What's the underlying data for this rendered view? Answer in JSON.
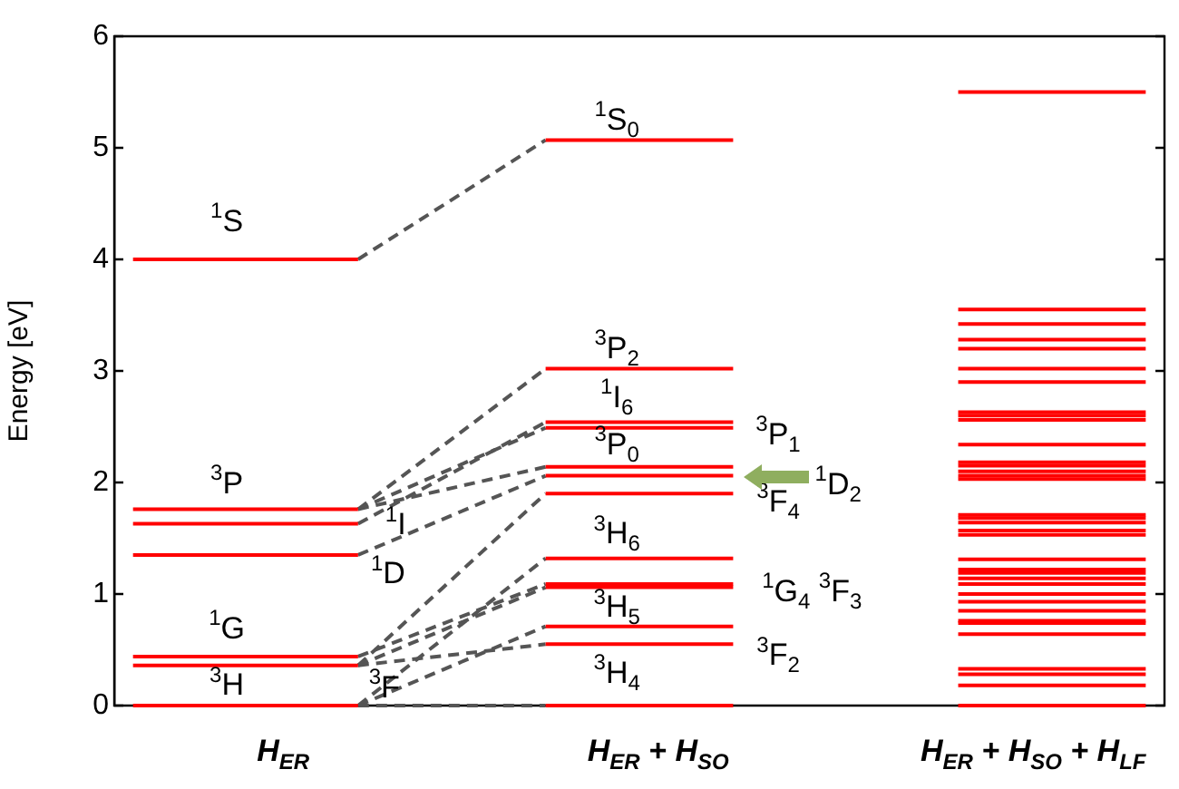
{
  "chart_data": {
    "type": "line",
    "ylabel": "Energy [eV]",
    "ylim": [
      0,
      6
    ],
    "yticks": [
      0,
      1,
      2,
      3,
      4,
      5,
      6
    ],
    "categories": [
      null,
      null,
      null,
      null,
      "H$_{ER}$",
      null,
      null,
      null,
      null,
      null,
      null,
      null,
      null,
      null,
      "H$_{ER}$ + H$_{SO}$",
      null,
      null,
      null,
      null,
      null,
      null,
      null,
      null,
      null,
      "H$_{ER}$ + H$_{SO}$ + H$_{LF}$",
      null,
      null,
      null
    ],
    "grid": false,
    "marker": "none",
    "series": [
      {
        "color": "#ff0000",
        "line_style": "solid",
        "values": [
          4.0,
          4.0,
          4.0,
          4.0,
          4.0,
          4.0,
          4.0,
          null,
          null,
          null,
          null,
          null,
          null,
          null,
          null,
          null,
          null,
          null,
          null,
          null,
          null,
          null,
          null,
          null,
          null,
          null,
          null,
          null
        ]
      },
      {
        "color": "#ff0000",
        "line_style": "solid",
        "values": [
          1.76,
          1.76,
          1.76,
          1.76,
          1.76,
          1.76,
          1.76,
          null,
          null,
          null,
          null,
          null,
          null,
          null,
          null,
          null,
          null,
          null,
          null,
          null,
          null,
          null,
          null,
          null,
          null,
          null,
          null,
          null
        ]
      },
      {
        "color": "#ff0000",
        "line_style": "solid",
        "values": [
          1.63,
          1.63,
          1.63,
          1.63,
          1.63,
          1.63,
          1.63,
          null,
          null,
          null,
          null,
          null,
          null,
          null,
          null,
          null,
          null,
          null,
          null,
          null,
          null,
          null,
          null,
          null,
          null,
          null,
          null,
          null
        ]
      },
      {
        "color": "#ff0000",
        "line_style": "solid",
        "values": [
          1.35,
          1.35,
          1.35,
          1.35,
          1.35,
          1.35,
          1.35,
          null,
          null,
          null,
          null,
          null,
          null,
          null,
          null,
          null,
          null,
          null,
          null,
          null,
          null,
          null,
          null,
          null,
          null,
          null,
          null,
          null
        ]
      },
      {
        "color": "#ff0000",
        "line_style": "solid",
        "values": [
          0.44,
          0.44,
          0.44,
          0.44,
          0.44,
          0.44,
          0.44,
          null,
          null,
          null,
          null,
          null,
          null,
          null,
          null,
          null,
          null,
          null,
          null,
          null,
          null,
          null,
          null,
          null,
          null,
          null,
          null,
          null
        ]
      },
      {
        "color": "#ff0000",
        "line_style": "solid",
        "values": [
          0.36,
          0.36,
          0.36,
          0.36,
          0.36,
          0.36,
          0.36,
          null,
          null,
          null,
          null,
          null,
          null,
          null,
          null,
          null,
          null,
          null,
          null,
          null,
          null,
          null,
          null,
          null,
          null,
          null,
          null,
          null
        ]
      },
      {
        "color": "#ff0000",
        "line_style": "solid",
        "values": [
          0,
          0,
          0,
          0,
          0,
          0,
          0,
          null,
          null,
          null,
          null,
          null,
          null,
          null,
          null,
          null,
          null,
          null,
          null,
          null,
          null,
          null,
          null,
          null,
          null,
          null,
          null,
          null
        ]
      },
      {
        "color": "#ff0000",
        "line_style": "solid",
        "values": [
          null,
          null,
          null,
          null,
          null,
          null,
          null,
          null,
          null,
          null,
          null,
          5.07,
          5.07,
          5.07,
          5.07,
          5.07,
          5.07,
          null,
          null,
          null,
          null,
          null,
          null,
          null,
          null,
          null,
          null,
          null
        ]
      },
      {
        "color": "#ff0000",
        "line_style": "solid",
        "values": [
          null,
          null,
          null,
          null,
          null,
          null,
          null,
          null,
          null,
          null,
          null,
          3.02,
          3.02,
          3.02,
          3.02,
          3.02,
          3.02,
          null,
          null,
          null,
          null,
          null,
          null,
          null,
          null,
          null,
          null,
          null
        ]
      },
      {
        "color": "#ff0000",
        "line_style": "solid",
        "values": [
          null,
          null,
          null,
          null,
          null,
          null,
          null,
          null,
          null,
          null,
          null,
          2.54,
          2.54,
          2.54,
          2.54,
          2.54,
          2.54,
          null,
          null,
          null,
          null,
          null,
          null,
          null,
          null,
          null,
          null,
          null
        ]
      },
      {
        "color": "#ff0000",
        "line_style": "solid",
        "values": [
          null,
          null,
          null,
          null,
          null,
          null,
          null,
          null,
          null,
          null,
          null,
          2.49,
          2.49,
          2.49,
          2.49,
          2.49,
          2.49,
          null,
          null,
          null,
          null,
          null,
          null,
          null,
          null,
          null,
          null,
          null
        ]
      },
      {
        "color": "#ff0000",
        "line_style": "solid",
        "values": [
          null,
          null,
          null,
          null,
          null,
          null,
          null,
          null,
          null,
          null,
          null,
          2.14,
          2.14,
          2.14,
          2.14,
          2.14,
          2.14,
          null,
          null,
          null,
          null,
          null,
          null,
          null,
          null,
          null,
          null,
          null
        ]
      },
      {
        "color": "#ff0000",
        "line_style": "solid",
        "values": [
          null,
          null,
          null,
          null,
          null,
          null,
          null,
          null,
          null,
          null,
          null,
          2.06,
          2.06,
          2.06,
          2.06,
          2.06,
          2.06,
          null,
          null,
          null,
          null,
          null,
          null,
          null,
          null,
          null,
          null,
          null
        ]
      },
      {
        "color": "#ff0000",
        "line_style": "solid",
        "values": [
          null,
          null,
          null,
          null,
          null,
          null,
          null,
          null,
          null,
          null,
          null,
          1.9,
          1.9,
          1.9,
          1.9,
          1.9,
          1.9,
          null,
          null,
          null,
          null,
          null,
          null,
          null,
          null,
          null,
          null,
          null
        ]
      },
      {
        "color": "#ff0000",
        "line_style": "solid",
        "values": [
          null,
          null,
          null,
          null,
          null,
          null,
          null,
          null,
          null,
          null,
          null,
          1.32,
          1.32,
          1.32,
          1.32,
          1.32,
          1.32,
          null,
          null,
          null,
          null,
          null,
          null,
          null,
          null,
          null,
          null,
          null
        ]
      },
      {
        "color": "#ff0000",
        "line_style": "solid",
        "values": [
          null,
          null,
          null,
          null,
          null,
          null,
          null,
          null,
          null,
          null,
          null,
          1.09,
          1.09,
          1.09,
          1.09,
          1.09,
          1.09,
          null,
          null,
          null,
          null,
          null,
          null,
          null,
          null,
          null,
          null,
          null
        ]
      },
      {
        "color": "#ff0000",
        "line_style": "solid",
        "values": [
          null,
          null,
          null,
          null,
          null,
          null,
          null,
          null,
          null,
          null,
          null,
          1.06,
          1.06,
          1.06,
          1.06,
          1.06,
          1.06,
          null,
          null,
          null,
          null,
          null,
          null,
          null,
          null,
          null,
          null,
          null
        ]
      },
      {
        "color": "#ff0000",
        "line_style": "solid",
        "values": [
          null,
          null,
          null,
          null,
          null,
          null,
          null,
          null,
          null,
          null,
          null,
          0.71,
          0.71,
          0.71,
          0.71,
          0.71,
          0.71,
          null,
          null,
          null,
          null,
          null,
          null,
          null,
          null,
          null,
          null,
          null
        ]
      },
      {
        "color": "#ff0000",
        "line_style": "solid",
        "values": [
          null,
          null,
          null,
          null,
          null,
          null,
          null,
          null,
          null,
          null,
          null,
          0.55,
          0.55,
          0.55,
          0.55,
          0.55,
          0.55,
          null,
          null,
          null,
          null,
          null,
          null,
          null,
          null,
          null,
          null,
          null
        ]
      },
      {
        "color": "#ff0000",
        "line_style": "solid",
        "values": [
          null,
          null,
          null,
          null,
          null,
          null,
          null,
          null,
          null,
          null,
          null,
          0,
          0,
          0,
          0,
          0,
          0,
          null,
          null,
          null,
          null,
          null,
          null,
          null,
          null,
          null,
          null,
          null
        ]
      },
      {
        "color": "#ff0000",
        "line_style": "solid",
        "values": [
          null,
          null,
          null,
          null,
          null,
          null,
          null,
          null,
          null,
          null,
          null,
          null,
          null,
          null,
          null,
          null,
          null,
          null,
          null,
          null,
          null,
          null,
          5.5,
          5.5,
          5.5,
          5.5,
          5.5,
          5.5
        ]
      },
      {
        "color": "#ff0000",
        "line_style": "solid",
        "values": [
          null,
          null,
          null,
          null,
          null,
          null,
          null,
          null,
          null,
          null,
          null,
          null,
          null,
          null,
          null,
          null,
          null,
          null,
          null,
          null,
          null,
          null,
          3.55,
          3.55,
          3.55,
          3.55,
          3.55,
          3.55
        ]
      },
      {
        "color": "#ff0000",
        "line_style": "solid",
        "values": [
          null,
          null,
          null,
          null,
          null,
          null,
          null,
          null,
          null,
          null,
          null,
          null,
          null,
          null,
          null,
          null,
          null,
          null,
          null,
          null,
          null,
          null,
          3.42,
          3.42,
          3.42,
          3.42,
          3.42,
          3.42
        ]
      },
      {
        "color": "#ff0000",
        "line_style": "solid",
        "values": [
          null,
          null,
          null,
          null,
          null,
          null,
          null,
          null,
          null,
          null,
          null,
          null,
          null,
          null,
          null,
          null,
          null,
          null,
          null,
          null,
          null,
          null,
          3.28,
          3.28,
          3.28,
          3.28,
          3.28,
          3.28
        ]
      },
      {
        "color": "#ff0000",
        "line_style": "solid",
        "values": [
          null,
          null,
          null,
          null,
          null,
          null,
          null,
          null,
          null,
          null,
          null,
          null,
          null,
          null,
          null,
          null,
          null,
          null,
          null,
          null,
          null,
          null,
          3.2,
          3.2,
          3.2,
          3.2,
          3.2,
          3.2
        ]
      },
      {
        "color": "#ff0000",
        "line_style": "solid",
        "values": [
          null,
          null,
          null,
          null,
          null,
          null,
          null,
          null,
          null,
          null,
          null,
          null,
          null,
          null,
          null,
          null,
          null,
          null,
          null,
          null,
          null,
          null,
          3.02,
          3.02,
          3.02,
          3.02,
          3.02,
          3.02
        ]
      },
      {
        "color": "#ff0000",
        "line_style": "solid",
        "values": [
          null,
          null,
          null,
          null,
          null,
          null,
          null,
          null,
          null,
          null,
          null,
          null,
          null,
          null,
          null,
          null,
          null,
          null,
          null,
          null,
          null,
          null,
          2.9,
          2.9,
          2.9,
          2.9,
          2.9,
          2.9
        ]
      },
      {
        "color": "#ff0000",
        "line_style": "solid",
        "values": [
          null,
          null,
          null,
          null,
          null,
          null,
          null,
          null,
          null,
          null,
          null,
          null,
          null,
          null,
          null,
          null,
          null,
          null,
          null,
          null,
          null,
          null,
          2.63,
          2.63,
          2.63,
          2.63,
          2.63,
          2.63
        ]
      },
      {
        "color": "#ff0000",
        "line_style": "solid",
        "values": [
          null,
          null,
          null,
          null,
          null,
          null,
          null,
          null,
          null,
          null,
          null,
          null,
          null,
          null,
          null,
          null,
          null,
          null,
          null,
          null,
          null,
          null,
          2.6,
          2.6,
          2.6,
          2.6,
          2.6,
          2.6
        ]
      },
      {
        "color": "#ff0000",
        "line_style": "solid",
        "values": [
          null,
          null,
          null,
          null,
          null,
          null,
          null,
          null,
          null,
          null,
          null,
          null,
          null,
          null,
          null,
          null,
          null,
          null,
          null,
          null,
          null,
          null,
          2.56,
          2.56,
          2.56,
          2.56,
          2.56,
          2.56
        ]
      },
      {
        "color": "#ff0000",
        "line_style": "solid",
        "values": [
          null,
          null,
          null,
          null,
          null,
          null,
          null,
          null,
          null,
          null,
          null,
          null,
          null,
          null,
          null,
          null,
          null,
          null,
          null,
          null,
          null,
          null,
          2.34,
          2.34,
          2.34,
          2.34,
          2.34,
          2.34
        ]
      },
      {
        "color": "#ff0000",
        "line_style": "solid",
        "values": [
          null,
          null,
          null,
          null,
          null,
          null,
          null,
          null,
          null,
          null,
          null,
          null,
          null,
          null,
          null,
          null,
          null,
          null,
          null,
          null,
          null,
          null,
          2.18,
          2.18,
          2.18,
          2.18,
          2.18,
          2.18
        ]
      },
      {
        "color": "#ff0000",
        "line_style": "solid",
        "values": [
          null,
          null,
          null,
          null,
          null,
          null,
          null,
          null,
          null,
          null,
          null,
          null,
          null,
          null,
          null,
          null,
          null,
          null,
          null,
          null,
          null,
          null,
          2.15,
          2.15,
          2.15,
          2.15,
          2.15,
          2.15
        ]
      },
      {
        "color": "#ff0000",
        "line_style": "solid",
        "values": [
          null,
          null,
          null,
          null,
          null,
          null,
          null,
          null,
          null,
          null,
          null,
          null,
          null,
          null,
          null,
          null,
          null,
          null,
          null,
          null,
          null,
          null,
          2.1,
          2.1,
          2.1,
          2.1,
          2.1,
          2.1
        ]
      },
      {
        "color": "#ff0000",
        "line_style": "solid",
        "values": [
          null,
          null,
          null,
          null,
          null,
          null,
          null,
          null,
          null,
          null,
          null,
          null,
          null,
          null,
          null,
          null,
          null,
          null,
          null,
          null,
          null,
          null,
          2.06,
          2.06,
          2.06,
          2.06,
          2.06,
          2.06
        ]
      },
      {
        "color": "#ff0000",
        "line_style": "solid",
        "values": [
          null,
          null,
          null,
          null,
          null,
          null,
          null,
          null,
          null,
          null,
          null,
          null,
          null,
          null,
          null,
          null,
          null,
          null,
          null,
          null,
          null,
          null,
          2.03,
          2.03,
          2.03,
          2.03,
          2.03,
          2.03
        ]
      },
      {
        "color": "#ff0000",
        "line_style": "solid",
        "values": [
          null,
          null,
          null,
          null,
          null,
          null,
          null,
          null,
          null,
          null,
          null,
          null,
          null,
          null,
          null,
          null,
          null,
          null,
          null,
          null,
          null,
          null,
          1.71,
          1.71,
          1.71,
          1.71,
          1.71,
          1.71
        ]
      },
      {
        "color": "#ff0000",
        "line_style": "solid",
        "values": [
          null,
          null,
          null,
          null,
          null,
          null,
          null,
          null,
          null,
          null,
          null,
          null,
          null,
          null,
          null,
          null,
          null,
          null,
          null,
          null,
          null,
          null,
          1.68,
          1.68,
          1.68,
          1.68,
          1.68,
          1.68
        ]
      },
      {
        "color": "#ff0000",
        "line_style": "solid",
        "values": [
          null,
          null,
          null,
          null,
          null,
          null,
          null,
          null,
          null,
          null,
          null,
          null,
          null,
          null,
          null,
          null,
          null,
          null,
          null,
          null,
          null,
          null,
          1.64,
          1.64,
          1.64,
          1.64,
          1.64,
          1.64
        ]
      },
      {
        "color": "#ff0000",
        "line_style": "solid",
        "values": [
          null,
          null,
          null,
          null,
          null,
          null,
          null,
          null,
          null,
          null,
          null,
          null,
          null,
          null,
          null,
          null,
          null,
          null,
          null,
          null,
          null,
          null,
          1.57,
          1.57,
          1.57,
          1.57,
          1.57,
          1.57
        ]
      },
      {
        "color": "#ff0000",
        "line_style": "solid",
        "values": [
          null,
          null,
          null,
          null,
          null,
          null,
          null,
          null,
          null,
          null,
          null,
          null,
          null,
          null,
          null,
          null,
          null,
          null,
          null,
          null,
          null,
          null,
          1.53,
          1.53,
          1.53,
          1.53,
          1.53,
          1.53
        ]
      },
      {
        "color": "#ff0000",
        "line_style": "solid",
        "values": [
          null,
          null,
          null,
          null,
          null,
          null,
          null,
          null,
          null,
          null,
          null,
          null,
          null,
          null,
          null,
          null,
          null,
          null,
          null,
          null,
          null,
          null,
          1.31,
          1.31,
          1.31,
          1.31,
          1.31,
          1.31
        ]
      },
      {
        "color": "#ff0000",
        "line_style": "solid",
        "values": [
          null,
          null,
          null,
          null,
          null,
          null,
          null,
          null,
          null,
          null,
          null,
          null,
          null,
          null,
          null,
          null,
          null,
          null,
          null,
          null,
          null,
          null,
          1.22,
          1.22,
          1.22,
          1.22,
          1.22,
          1.22
        ]
      },
      {
        "color": "#ff0000",
        "line_style": "solid",
        "values": [
          null,
          null,
          null,
          null,
          null,
          null,
          null,
          null,
          null,
          null,
          null,
          null,
          null,
          null,
          null,
          null,
          null,
          null,
          null,
          null,
          null,
          null,
          1.19,
          1.19,
          1.19,
          1.19,
          1.19,
          1.19
        ]
      },
      {
        "color": "#ff0000",
        "line_style": "solid",
        "values": [
          null,
          null,
          null,
          null,
          null,
          null,
          null,
          null,
          null,
          null,
          null,
          null,
          null,
          null,
          null,
          null,
          null,
          null,
          null,
          null,
          null,
          null,
          1.14,
          1.14,
          1.14,
          1.14,
          1.14,
          1.14
        ]
      },
      {
        "color": "#ff0000",
        "line_style": "solid",
        "values": [
          null,
          null,
          null,
          null,
          null,
          null,
          null,
          null,
          null,
          null,
          null,
          null,
          null,
          null,
          null,
          null,
          null,
          null,
          null,
          null,
          null,
          null,
          1.09,
          1.09,
          1.09,
          1.09,
          1.09,
          1.09
        ]
      },
      {
        "color": "#ff0000",
        "line_style": "solid",
        "values": [
          null,
          null,
          null,
          null,
          null,
          null,
          null,
          null,
          null,
          null,
          null,
          null,
          null,
          null,
          null,
          null,
          null,
          null,
          null,
          null,
          null,
          null,
          1.0,
          1.0,
          1.0,
          1.0,
          1.0,
          1.0
        ]
      },
      {
        "color": "#ff0000",
        "line_style": "solid",
        "values": [
          null,
          null,
          null,
          null,
          null,
          null,
          null,
          null,
          null,
          null,
          null,
          null,
          null,
          null,
          null,
          null,
          null,
          null,
          null,
          null,
          null,
          null,
          0.93,
          0.93,
          0.93,
          0.93,
          0.93,
          0.93
        ]
      },
      {
        "color": "#ff0000",
        "line_style": "solid",
        "values": [
          null,
          null,
          null,
          null,
          null,
          null,
          null,
          null,
          null,
          null,
          null,
          null,
          null,
          null,
          null,
          null,
          null,
          null,
          null,
          null,
          null,
          null,
          0.85,
          0.85,
          0.85,
          0.85,
          0.85,
          0.85
        ]
      },
      {
        "color": "#ff0000",
        "line_style": "solid",
        "values": [
          null,
          null,
          null,
          null,
          null,
          null,
          null,
          null,
          null,
          null,
          null,
          null,
          null,
          null,
          null,
          null,
          null,
          null,
          null,
          null,
          null,
          null,
          0.76,
          0.76,
          0.76,
          0.76,
          0.76,
          0.76
        ]
      },
      {
        "color": "#ff0000",
        "line_style": "solid",
        "values": [
          null,
          null,
          null,
          null,
          null,
          null,
          null,
          null,
          null,
          null,
          null,
          null,
          null,
          null,
          null,
          null,
          null,
          null,
          null,
          null,
          null,
          null,
          0.74,
          0.74,
          0.74,
          0.74,
          0.74,
          0.74
        ]
      },
      {
        "color": "#ff0000",
        "line_style": "solid",
        "values": [
          null,
          null,
          null,
          null,
          null,
          null,
          null,
          null,
          null,
          null,
          null,
          null,
          null,
          null,
          null,
          null,
          null,
          null,
          null,
          null,
          null,
          null,
          0.64,
          0.64,
          0.64,
          0.64,
          0.64,
          0.64
        ]
      },
      {
        "color": "#ff0000",
        "line_style": "solid",
        "values": [
          null,
          null,
          null,
          null,
          null,
          null,
          null,
          null,
          null,
          null,
          null,
          null,
          null,
          null,
          null,
          null,
          null,
          null,
          null,
          null,
          null,
          null,
          0.33,
          0.33,
          0.33,
          0.33,
          0.33,
          0.33
        ]
      },
      {
        "color": "#ff0000",
        "line_style": "solid",
        "values": [
          null,
          null,
          null,
          null,
          null,
          null,
          null,
          null,
          null,
          null,
          null,
          null,
          null,
          null,
          null,
          null,
          null,
          null,
          null,
          null,
          null,
          null,
          0.28,
          0.28,
          0.28,
          0.28,
          0.28,
          0.28
        ]
      },
      {
        "color": "#ff0000",
        "line_style": "solid",
        "values": [
          null,
          null,
          null,
          null,
          null,
          null,
          null,
          null,
          null,
          null,
          null,
          null,
          null,
          null,
          null,
          null,
          null,
          null,
          null,
          null,
          null,
          null,
          0.18,
          0.18,
          0.18,
          0.18,
          0.18,
          0.18
        ]
      },
      {
        "color": "#ff0000",
        "line_style": "solid",
        "values": [
          null,
          null,
          null,
          null,
          null,
          null,
          null,
          null,
          null,
          null,
          null,
          null,
          null,
          null,
          null,
          null,
          null,
          null,
          null,
          null,
          null,
          null,
          0,
          0,
          0,
          0,
          0,
          0
        ]
      },
      {
        "color": "#555555",
        "line_style": "dashed",
        "values": [
          null,
          null,
          null,
          null,
          null,
          null,
          4.0,
          null,
          null,
          null,
          null,
          5.07,
          null,
          null,
          null,
          null,
          null,
          null,
          null,
          null,
          null,
          null,
          null,
          null,
          null,
          null,
          null,
          null
        ]
      },
      {
        "color": "#555555",
        "line_style": "dashed",
        "values": [
          null,
          null,
          null,
          null,
          null,
          null,
          1.76,
          null,
          null,
          null,
          null,
          3.02,
          null,
          null,
          null,
          null,
          null,
          null,
          null,
          null,
          null,
          null,
          null,
          null,
          null,
          null,
          null,
          null
        ]
      },
      {
        "color": "#555555",
        "line_style": "dashed",
        "values": [
          null,
          null,
          null,
          null,
          null,
          null,
          1.76,
          null,
          null,
          null,
          null,
          2.49,
          null,
          null,
          null,
          null,
          null,
          null,
          null,
          null,
          null,
          null,
          null,
          null,
          null,
          null,
          null,
          null
        ]
      },
      {
        "color": "#555555",
        "line_style": "dashed",
        "values": [
          null,
          null,
          null,
          null,
          null,
          null,
          1.76,
          null,
          null,
          null,
          null,
          2.14,
          null,
          null,
          null,
          null,
          null,
          null,
          null,
          null,
          null,
          null,
          null,
          null,
          null,
          null,
          null,
          null
        ]
      },
      {
        "color": "#555555",
        "line_style": "dashed",
        "values": [
          null,
          null,
          null,
          null,
          null,
          null,
          1.63,
          null,
          null,
          null,
          null,
          2.54,
          null,
          null,
          null,
          null,
          null,
          null,
          null,
          null,
          null,
          null,
          null,
          null,
          null,
          null,
          null,
          null
        ]
      },
      {
        "color": "#555555",
        "line_style": "dashed",
        "values": [
          null,
          null,
          null,
          null,
          null,
          null,
          1.35,
          null,
          null,
          null,
          null,
          2.06,
          null,
          null,
          null,
          null,
          null,
          null,
          null,
          null,
          null,
          null,
          null,
          null,
          null,
          null,
          null,
          null
        ]
      },
      {
        "color": "#555555",
        "line_style": "dashed",
        "values": [
          null,
          null,
          null,
          null,
          null,
          null,
          0.44,
          null,
          null,
          null,
          null,
          1.09,
          null,
          null,
          null,
          null,
          null,
          null,
          null,
          null,
          null,
          null,
          null,
          null,
          null,
          null,
          null,
          null
        ]
      },
      {
        "color": "#555555",
        "line_style": "dashed",
        "values": [
          null,
          null,
          null,
          null,
          null,
          null,
          0.36,
          null,
          null,
          null,
          null,
          1.9,
          null,
          null,
          null,
          null,
          null,
          null,
          null,
          null,
          null,
          null,
          null,
          null,
          null,
          null,
          null,
          null
        ]
      },
      {
        "color": "#555555",
        "line_style": "dashed",
        "values": [
          null,
          null,
          null,
          null,
          null,
          null,
          0.36,
          null,
          null,
          null,
          null,
          1.06,
          null,
          null,
          null,
          null,
          null,
          null,
          null,
          null,
          null,
          null,
          null,
          null,
          null,
          null,
          null,
          null
        ]
      },
      {
        "color": "#555555",
        "line_style": "dashed",
        "values": [
          null,
          null,
          null,
          null,
          null,
          null,
          0.36,
          null,
          null,
          null,
          null,
          0.55,
          null,
          null,
          null,
          null,
          null,
          null,
          null,
          null,
          null,
          null,
          null,
          null,
          null,
          null,
          null,
          null
        ]
      },
      {
        "color": "#555555",
        "line_style": "dashed",
        "values": [
          null,
          null,
          null,
          null,
          null,
          null,
          0,
          null,
          null,
          null,
          null,
          1.32,
          null,
          null,
          null,
          null,
          null,
          null,
          null,
          null,
          null,
          null,
          null,
          null,
          null,
          null,
          null,
          null
        ]
      },
      {
        "color": "#555555",
        "line_style": "dashed",
        "values": [
          null,
          null,
          null,
          null,
          null,
          null,
          0,
          null,
          null,
          null,
          null,
          0.71,
          null,
          null,
          null,
          null,
          null,
          null,
          null,
          null,
          null,
          null,
          null,
          null,
          null,
          null,
          null,
          null
        ]
      },
      {
        "color": "#555555",
        "line_style": "dashed",
        "values": [
          null,
          null,
          null,
          null,
          null,
          null,
          0,
          null,
          null,
          null,
          null,
          0,
          null,
          null,
          null,
          null,
          null,
          null,
          null,
          null,
          null,
          null,
          null,
          null,
          null,
          null,
          null,
          null
        ]
      }
    ],
    "annotations": [
      "$^{1}$S",
      "$^{3}$P",
      "$^{1}$I",
      "$^{1}$D",
      "$^{1}$G",
      "$^{3}$H",
      "$^{3}$F",
      "$^{1}$S$_{0}$",
      "$^{3}$P$_{2}$",
      "$^{1}$I$_{6}$",
      "$^{3}$P$_{1}$",
      "$^{3}$P$_{0}$",
      "$^{1}$D$_{2}$",
      "$^{3}$F$_{4}$",
      "$^{3}$H$_{6}$",
      "$^{1}$G$_{4}$ $^{3}$F$_{3}$",
      "$^{3}$H$_{5}$",
      "$^{3}$F$_{2}$",
      "$^{3}$H$_{4}$"
    ]
  }
}
